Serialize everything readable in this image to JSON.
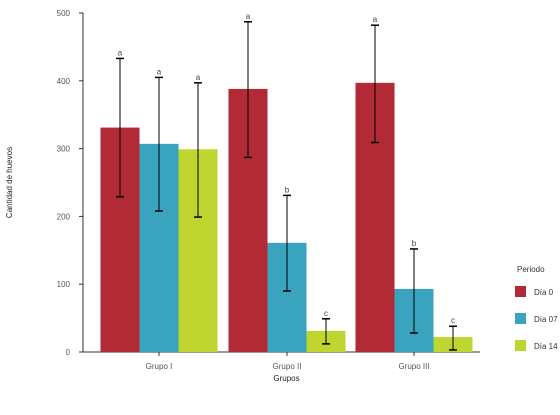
{
  "chart_data": {
    "type": "bar",
    "xlabel": "Grupos",
    "ylabel": "Cantidad de huevos",
    "ylim": [
      0,
      500
    ],
    "yticks": [
      0,
      100,
      200,
      300,
      400,
      500
    ],
    "categories": [
      "Grupo I",
      "Grupo II",
      "Grupo III"
    ],
    "legend": {
      "title": "Periodo",
      "placement": "right"
    },
    "grid": false,
    "series": [
      {
        "name": "Día 0",
        "color": "#b22a35",
        "values": [
          331,
          388,
          397
        ],
        "err_low": [
          229,
          287,
          309
        ],
        "err_high": [
          433,
          487,
          482
        ],
        "labels": [
          "a",
          "a",
          "a"
        ]
      },
      {
        "name": "Día 07",
        "color": "#3aa3bd",
        "values": [
          307,
          161,
          93
        ],
        "err_low": [
          208,
          90,
          28
        ],
        "err_high": [
          405,
          231,
          152
        ],
        "labels": [
          "a",
          "b",
          "b"
        ]
      },
      {
        "name": "Día 14",
        "color": "#bfd530",
        "values": [
          299,
          31,
          22
        ],
        "err_low": [
          199,
          12,
          3
        ],
        "err_high": [
          397,
          49,
          38
        ],
        "labels": [
          "a",
          "c",
          "c"
        ]
      }
    ]
  }
}
